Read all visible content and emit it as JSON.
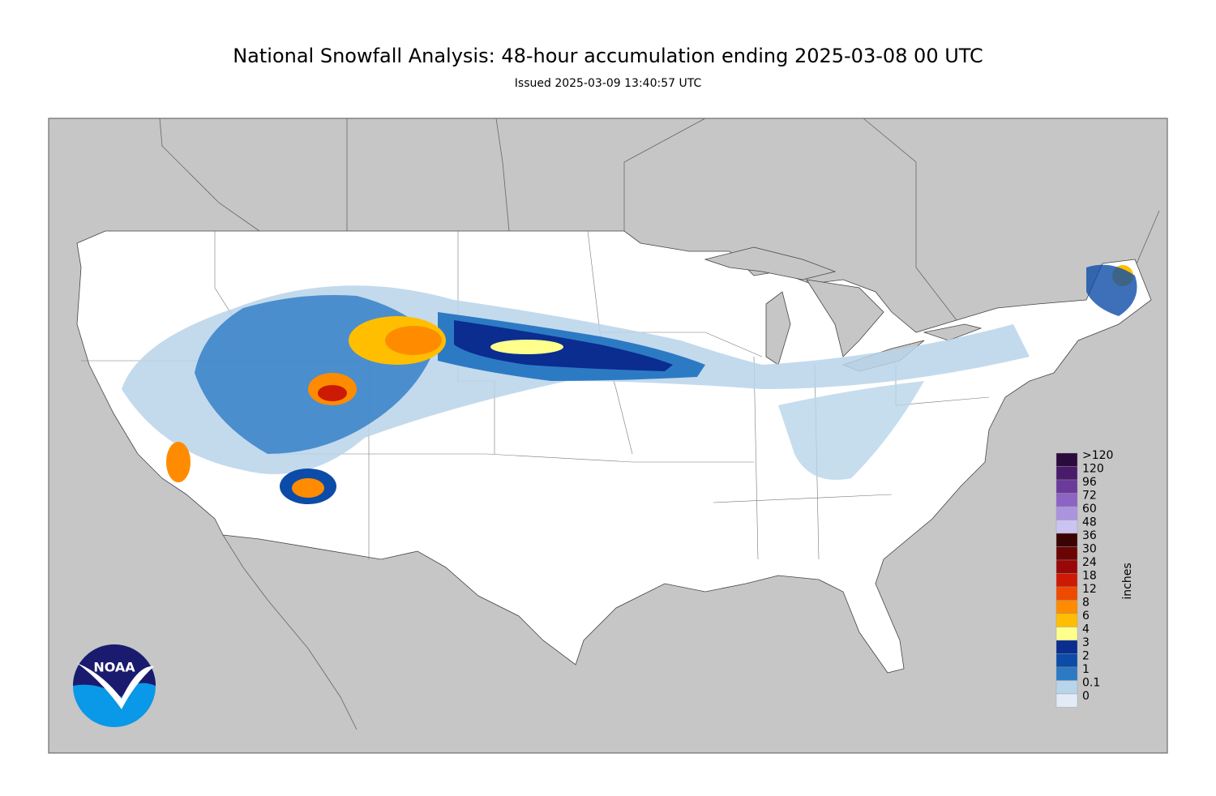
{
  "header": {
    "title": "National Snowfall Analysis: 48-hour accumulation ending 2025-03-08 00 UTC",
    "subtitle": "Issued 2025-03-09 13:40:57 UTC"
  },
  "legend": {
    "unit": "inches",
    "items": [
      {
        "label": ">120",
        "color": "#2b0a3d"
      },
      {
        "label": "120",
        "color": "#4a1b6b"
      },
      {
        "label": "96",
        "color": "#6b3a9a"
      },
      {
        "label": "72",
        "color": "#8c64c4"
      },
      {
        "label": "60",
        "color": "#ab94dd"
      },
      {
        "label": "48",
        "color": "#cbc4f2"
      },
      {
        "label": "36",
        "color": "#3a0303"
      },
      {
        "label": "30",
        "color": "#6b0505"
      },
      {
        "label": "24",
        "color": "#990808"
      },
      {
        "label": "18",
        "color": "#cc1a05"
      },
      {
        "label": "12",
        "color": "#ee4a00"
      },
      {
        "label": "8",
        "color": "#ff8c00"
      },
      {
        "label": "6",
        "color": "#ffbf00"
      },
      {
        "label": "4",
        "color": "#ffff8c"
      },
      {
        "label": "3",
        "color": "#0a2d8f"
      },
      {
        "label": "2",
        "color": "#0c4ca8"
      },
      {
        "label": "1",
        "color": "#2d7ac4"
      },
      {
        "label": "0.1",
        "color": "#b8d4ea"
      },
      {
        "label": "0",
        "color": "#e2ecf6"
      }
    ]
  },
  "logo": {
    "text": "NOAA"
  }
}
